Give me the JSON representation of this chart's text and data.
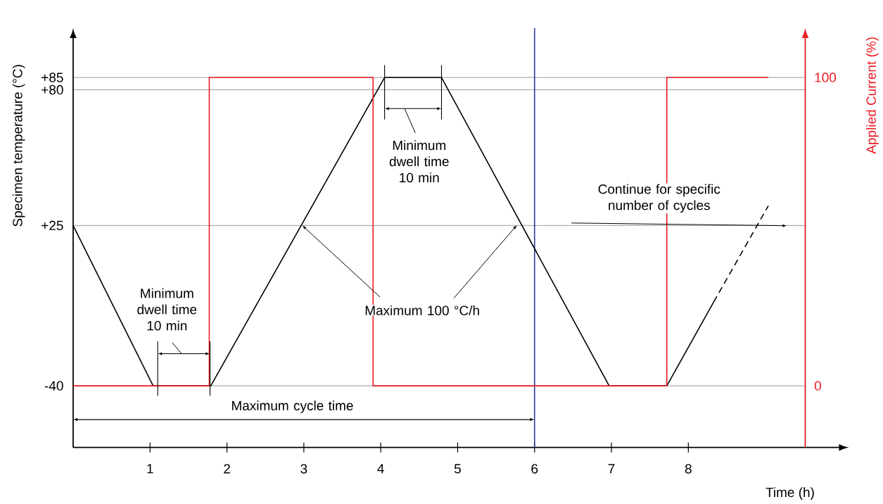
{
  "chart_data": {
    "type": "line",
    "xlabel": "Time   (h)",
    "ylabel": "Specimen temperature  (°C)",
    "y2label": "Applied Current   (%)",
    "xlim": [
      0,
      9.52
    ],
    "xticks": [
      1,
      2,
      3,
      4,
      5,
      6,
      7,
      8
    ],
    "ylim": [
      -65,
      105
    ],
    "yticks": [
      {
        "value": -40,
        "label": "-40"
      },
      {
        "value": 25,
        "label": "+25"
      },
      {
        "value": 80,
        "label": "+80"
      },
      {
        "value": 85,
        "label": "+85"
      }
    ],
    "y2lim": [
      -20,
      116
    ],
    "y2ticks": [
      0,
      100
    ],
    "grid": "y",
    "series": [
      {
        "color": "#000000",
        "x": [
          0,
          1.04,
          1.79,
          4.05,
          4.79,
          6.97,
          7.72,
          8.33
        ],
        "values": [
          25,
          -40,
          -40,
          85,
          85,
          -40,
          -40,
          -6
        ]
      },
      {
        "color": "#000000",
        "line_style": "dashed",
        "x": [
          8.33,
          9.04
        ],
        "values": [
          -6,
          33
        ]
      },
      {
        "type": "step",
        "axis": "y2",
        "color": "#ed1c24",
        "x": [
          0,
          1.77,
          3.9,
          7.72,
          9.04
        ],
        "values": [
          0,
          100,
          0,
          100,
          100
        ]
      }
    ],
    "ref_lines": [
      {
        "axis": "x",
        "value": 6,
        "color": "#2b3a9c"
      }
    ],
    "annotations": [
      "Minimum dwell time 10 min",
      "Minimum dwell time 10 min",
      {
        "text": "Maximum 100 °C/h",
        "x": 2.98,
        "y": 25
      },
      "Maximum cycle time",
      "Continue for specific number of cycles"
    ]
  }
}
